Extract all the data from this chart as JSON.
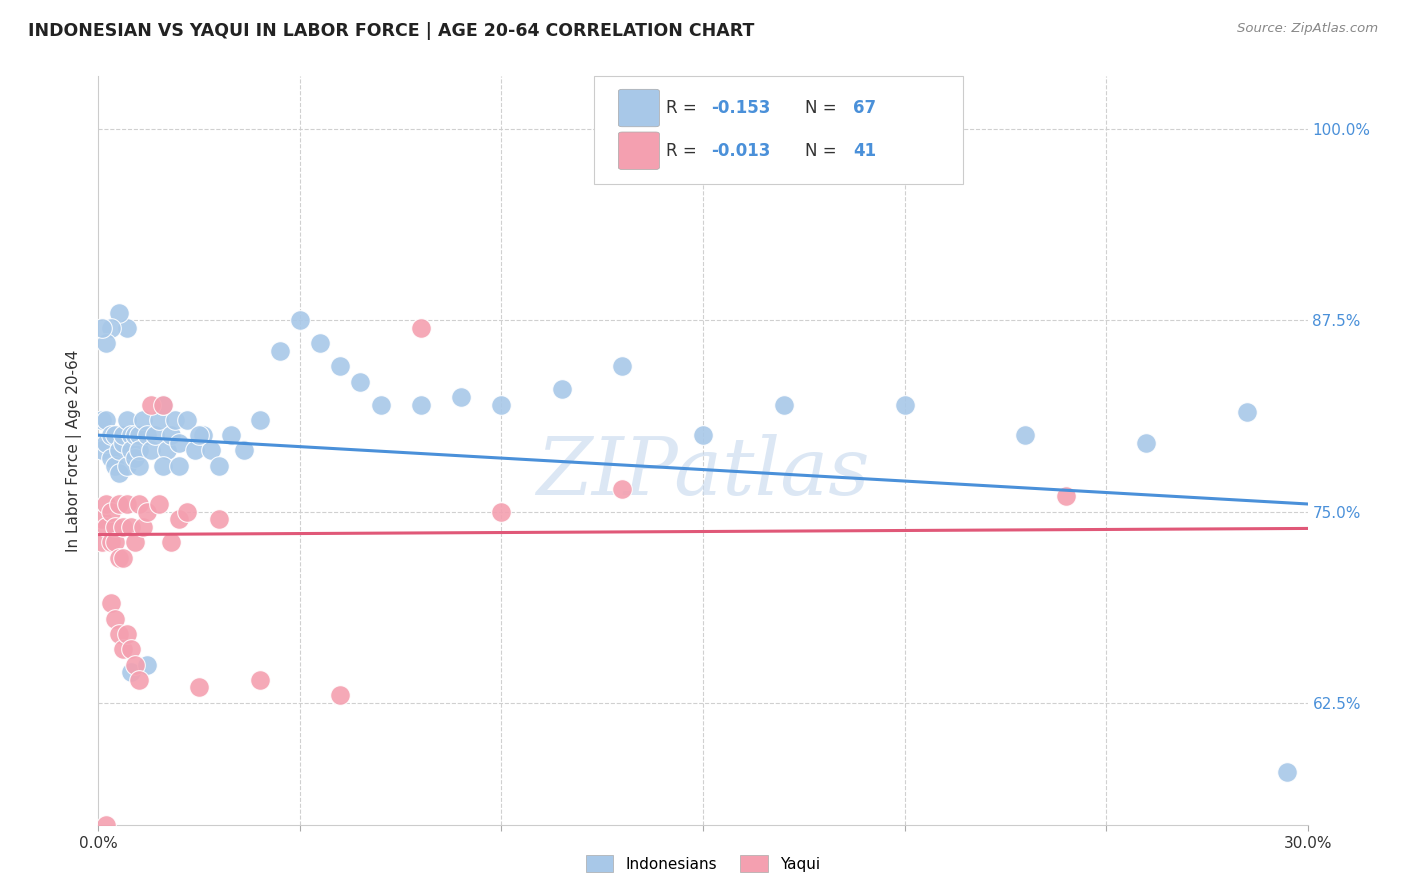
{
  "title": "INDONESIAN VS YAQUI IN LABOR FORCE | AGE 20-64 CORRELATION CHART",
  "source": "Source: ZipAtlas.com",
  "ylabel": "In Labor Force | Age 20-64",
  "yticks": [
    0.625,
    0.75,
    0.875,
    1.0
  ],
  "ytick_labels": [
    "62.5%",
    "75.0%",
    "87.5%",
    "100.0%"
  ],
  "xmin": 0.0,
  "xmax": 0.3,
  "ymin": 0.545,
  "ymax": 1.035,
  "blue_color": "#a8c8e8",
  "pink_color": "#f4a0b0",
  "blue_line_color": "#4a90d9",
  "pink_line_color": "#e05878",
  "watermark": "ZIPatlas",
  "indo_line_x0": 0.0,
  "indo_line_y0": 0.8,
  "indo_line_x1": 0.3,
  "indo_line_y1": 0.755,
  "yaqui_line_x0": 0.0,
  "yaqui_line_y0": 0.735,
  "yaqui_line_x1": 0.3,
  "yaqui_line_y1": 0.739,
  "indonesian_x": [
    0.001,
    0.001,
    0.002,
    0.002,
    0.003,
    0.003,
    0.004,
    0.004,
    0.005,
    0.005,
    0.006,
    0.006,
    0.007,
    0.007,
    0.008,
    0.008,
    0.009,
    0.009,
    0.01,
    0.01,
    0.011,
    0.012,
    0.013,
    0.014,
    0.015,
    0.016,
    0.017,
    0.018,
    0.019,
    0.02,
    0.022,
    0.024,
    0.026,
    0.028,
    0.03,
    0.033,
    0.036,
    0.04,
    0.045,
    0.05,
    0.055,
    0.06,
    0.065,
    0.07,
    0.08,
    0.09,
    0.1,
    0.115,
    0.13,
    0.15,
    0.17,
    0.2,
    0.23,
    0.26,
    0.285,
    0.295,
    0.016,
    0.02,
    0.025,
    0.01,
    0.007,
    0.005,
    0.003,
    0.002,
    0.001,
    0.008,
    0.012
  ],
  "indonesian_y": [
    0.81,
    0.79,
    0.81,
    0.795,
    0.8,
    0.785,
    0.8,
    0.78,
    0.79,
    0.775,
    0.795,
    0.8,
    0.81,
    0.78,
    0.8,
    0.79,
    0.785,
    0.8,
    0.8,
    0.79,
    0.81,
    0.8,
    0.79,
    0.8,
    0.81,
    0.82,
    0.79,
    0.8,
    0.81,
    0.795,
    0.81,
    0.79,
    0.8,
    0.79,
    0.78,
    0.8,
    0.79,
    0.81,
    0.855,
    0.875,
    0.86,
    0.845,
    0.835,
    0.82,
    0.82,
    0.825,
    0.82,
    0.83,
    0.845,
    0.8,
    0.82,
    0.82,
    0.8,
    0.795,
    0.815,
    0.58,
    0.78,
    0.78,
    0.8,
    0.78,
    0.87,
    0.88,
    0.87,
    0.86,
    0.87,
    0.645,
    0.65
  ],
  "yaqui_x": [
    0.001,
    0.001,
    0.002,
    0.002,
    0.003,
    0.003,
    0.004,
    0.004,
    0.005,
    0.005,
    0.006,
    0.006,
    0.007,
    0.008,
    0.009,
    0.01,
    0.011,
    0.012,
    0.013,
    0.015,
    0.016,
    0.018,
    0.02,
    0.022,
    0.025,
    0.03,
    0.04,
    0.06,
    0.08,
    0.1,
    0.13,
    0.24,
    0.003,
    0.004,
    0.005,
    0.006,
    0.007,
    0.008,
    0.009,
    0.01,
    0.002
  ],
  "yaqui_y": [
    0.745,
    0.73,
    0.755,
    0.74,
    0.73,
    0.75,
    0.74,
    0.73,
    0.72,
    0.755,
    0.74,
    0.72,
    0.755,
    0.74,
    0.73,
    0.755,
    0.74,
    0.75,
    0.82,
    0.755,
    0.82,
    0.73,
    0.745,
    0.75,
    0.635,
    0.745,
    0.64,
    0.63,
    0.87,
    0.75,
    0.765,
    0.76,
    0.69,
    0.68,
    0.67,
    0.66,
    0.67,
    0.66,
    0.65,
    0.64,
    0.545
  ]
}
